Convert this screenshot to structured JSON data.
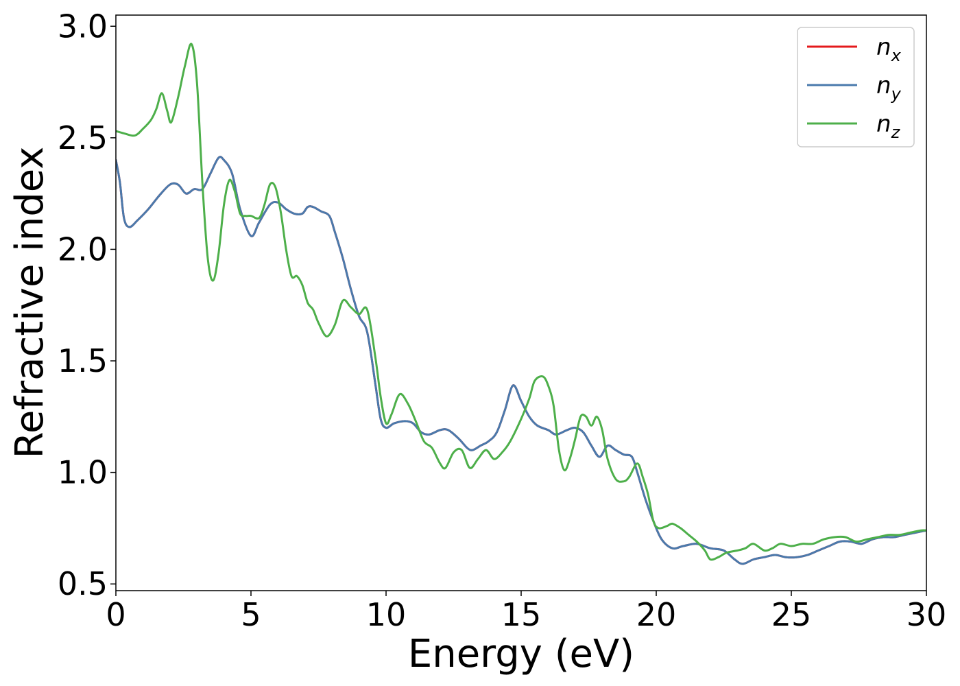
{
  "chart_data": {
    "type": "line",
    "xlabel": "Energy (eV)",
    "ylabel": "Refractive index",
    "xlim": [
      0,
      30
    ],
    "ylim": [
      0.47,
      3.05
    ],
    "xticks": [
      "0",
      "5",
      "10",
      "15",
      "20",
      "25",
      "30"
    ],
    "yticks": [
      "0.5",
      "1.0",
      "1.5",
      "2.0",
      "2.5",
      "3.0"
    ],
    "grid": false,
    "legend_position": "top-right",
    "series": [
      {
        "name": "n_x",
        "label_base": "n",
        "label_sub": "x",
        "color": "#e41a1c",
        "x": [
          0,
          0.15,
          0.3,
          0.5,
          0.8,
          1.2,
          1.6,
          2.0,
          2.3,
          2.6,
          2.9,
          3.2,
          3.5,
          3.8,
          4.0,
          4.3,
          4.6,
          5.0,
          5.3,
          5.7,
          6.0,
          6.3,
          6.6,
          6.9,
          7.1,
          7.3,
          7.6,
          7.9,
          8.1,
          8.4,
          8.7,
          9.0,
          9.3,
          9.6,
          9.8,
          10.0,
          10.3,
          10.7,
          11.0,
          11.3,
          11.6,
          12.0,
          12.3,
          12.7,
          13.0,
          13.2,
          13.5,
          13.8,
          14.1,
          14.4,
          14.7,
          15.0,
          15.3,
          15.6,
          16.0,
          16.3,
          16.7,
          17.0,
          17.3,
          17.6,
          17.9,
          18.2,
          18.5,
          18.8,
          19.1,
          19.3,
          19.6,
          19.9,
          20.2,
          20.6,
          21.0,
          21.5,
          22.0,
          22.5,
          22.9,
          23.2,
          23.6,
          24.0,
          24.4,
          24.8,
          25.2,
          25.6,
          26.0,
          26.4,
          26.8,
          27.2,
          27.6,
          28.0,
          28.4,
          28.8,
          29.2,
          29.6,
          30.0
        ],
        "y": [
          2.4,
          2.3,
          2.14,
          2.1,
          2.13,
          2.18,
          2.24,
          2.29,
          2.29,
          2.25,
          2.27,
          2.27,
          2.34,
          2.41,
          2.4,
          2.34,
          2.18,
          2.06,
          2.12,
          2.2,
          2.21,
          2.18,
          2.16,
          2.16,
          2.19,
          2.19,
          2.17,
          2.15,
          2.08,
          1.96,
          1.82,
          1.7,
          1.63,
          1.4,
          1.24,
          1.2,
          1.22,
          1.23,
          1.22,
          1.18,
          1.17,
          1.19,
          1.19,
          1.15,
          1.11,
          1.1,
          1.12,
          1.14,
          1.18,
          1.28,
          1.39,
          1.32,
          1.25,
          1.21,
          1.19,
          1.17,
          1.19,
          1.2,
          1.18,
          1.12,
          1.07,
          1.12,
          1.1,
          1.08,
          1.07,
          1.0,
          0.88,
          0.78,
          0.7,
          0.66,
          0.67,
          0.68,
          0.66,
          0.65,
          0.61,
          0.59,
          0.61,
          0.62,
          0.63,
          0.62,
          0.62,
          0.63,
          0.65,
          0.67,
          0.69,
          0.69,
          0.68,
          0.7,
          0.71,
          0.71,
          0.72,
          0.73,
          0.74
        ]
      },
      {
        "name": "n_y",
        "label_base": "n",
        "label_sub": "y",
        "color": "#4a7aac",
        "x": [
          0,
          0.15,
          0.3,
          0.5,
          0.8,
          1.2,
          1.6,
          2.0,
          2.3,
          2.6,
          2.9,
          3.2,
          3.5,
          3.8,
          4.0,
          4.3,
          4.6,
          5.0,
          5.3,
          5.7,
          6.0,
          6.3,
          6.6,
          6.9,
          7.1,
          7.3,
          7.6,
          7.9,
          8.1,
          8.4,
          8.7,
          9.0,
          9.3,
          9.6,
          9.8,
          10.0,
          10.3,
          10.7,
          11.0,
          11.3,
          11.6,
          12.0,
          12.3,
          12.7,
          13.0,
          13.2,
          13.5,
          13.8,
          14.1,
          14.4,
          14.7,
          15.0,
          15.3,
          15.6,
          16.0,
          16.3,
          16.7,
          17.0,
          17.3,
          17.6,
          17.9,
          18.2,
          18.5,
          18.8,
          19.1,
          19.3,
          19.6,
          19.9,
          20.2,
          20.6,
          21.0,
          21.5,
          22.0,
          22.5,
          22.9,
          23.2,
          23.6,
          24.0,
          24.4,
          24.8,
          25.2,
          25.6,
          26.0,
          26.4,
          26.8,
          27.2,
          27.6,
          28.0,
          28.4,
          28.8,
          29.2,
          29.6,
          30.0
        ],
        "y": [
          2.4,
          2.3,
          2.14,
          2.1,
          2.13,
          2.18,
          2.24,
          2.29,
          2.29,
          2.25,
          2.27,
          2.27,
          2.34,
          2.41,
          2.4,
          2.34,
          2.18,
          2.06,
          2.12,
          2.2,
          2.21,
          2.18,
          2.16,
          2.16,
          2.19,
          2.19,
          2.17,
          2.15,
          2.08,
          1.96,
          1.82,
          1.7,
          1.63,
          1.4,
          1.24,
          1.2,
          1.22,
          1.23,
          1.22,
          1.18,
          1.17,
          1.19,
          1.19,
          1.15,
          1.11,
          1.1,
          1.12,
          1.14,
          1.18,
          1.28,
          1.39,
          1.32,
          1.25,
          1.21,
          1.19,
          1.17,
          1.19,
          1.2,
          1.18,
          1.12,
          1.07,
          1.12,
          1.1,
          1.08,
          1.07,
          1.0,
          0.88,
          0.78,
          0.7,
          0.66,
          0.67,
          0.68,
          0.66,
          0.65,
          0.61,
          0.59,
          0.61,
          0.62,
          0.63,
          0.62,
          0.62,
          0.63,
          0.65,
          0.67,
          0.69,
          0.69,
          0.68,
          0.7,
          0.71,
          0.71,
          0.72,
          0.73,
          0.74
        ]
      },
      {
        "name": "n_z",
        "label_base": "n",
        "label_sub": "z",
        "color": "#4daf4a",
        "x": [
          0,
          0.3,
          0.7,
          1.0,
          1.3,
          1.5,
          1.7,
          1.9,
          2.05,
          2.3,
          2.55,
          2.8,
          3.0,
          3.2,
          3.4,
          3.6,
          3.8,
          4.0,
          4.2,
          4.4,
          4.6,
          4.8,
          5.0,
          5.3,
          5.5,
          5.7,
          5.9,
          6.1,
          6.3,
          6.5,
          6.7,
          6.9,
          7.1,
          7.3,
          7.5,
          7.8,
          8.1,
          8.4,
          8.7,
          9.0,
          9.3,
          9.6,
          9.8,
          10.0,
          10.2,
          10.5,
          10.8,
          11.1,
          11.4,
          11.7,
          12.0,
          12.2,
          12.5,
          12.8,
          13.1,
          13.4,
          13.7,
          14.0,
          14.3,
          14.6,
          15.0,
          15.3,
          15.5,
          15.8,
          16.0,
          16.2,
          16.4,
          16.6,
          16.8,
          17.0,
          17.2,
          17.4,
          17.6,
          17.8,
          18.0,
          18.2,
          18.5,
          18.8,
          19.0,
          19.3,
          19.5,
          19.7,
          19.9,
          20.1,
          20.4,
          20.6,
          20.9,
          21.2,
          21.5,
          21.8,
          22.0,
          22.3,
          22.6,
          23.0,
          23.3,
          23.6,
          24.0,
          24.3,
          24.6,
          25.0,
          25.4,
          25.8,
          26.2,
          26.6,
          27.0,
          27.4,
          27.8,
          28.2,
          28.6,
          29.0,
          29.4,
          29.8,
          30.0
        ],
        "y": [
          2.53,
          2.52,
          2.51,
          2.54,
          2.58,
          2.63,
          2.7,
          2.62,
          2.57,
          2.68,
          2.82,
          2.92,
          2.75,
          2.3,
          1.96,
          1.86,
          1.98,
          2.2,
          2.31,
          2.26,
          2.16,
          2.15,
          2.15,
          2.14,
          2.2,
          2.29,
          2.28,
          2.17,
          2.0,
          1.88,
          1.88,
          1.84,
          1.76,
          1.73,
          1.67,
          1.61,
          1.66,
          1.77,
          1.74,
          1.71,
          1.73,
          1.52,
          1.34,
          1.22,
          1.26,
          1.35,
          1.31,
          1.23,
          1.14,
          1.11,
          1.04,
          1.02,
          1.09,
          1.1,
          1.02,
          1.06,
          1.1,
          1.06,
          1.09,
          1.14,
          1.24,
          1.33,
          1.41,
          1.43,
          1.39,
          1.3,
          1.1,
          1.01,
          1.06,
          1.15,
          1.25,
          1.25,
          1.21,
          1.25,
          1.19,
          1.06,
          0.97,
          0.96,
          0.98,
          1.04,
          0.98,
          0.9,
          0.78,
          0.75,
          0.76,
          0.77,
          0.75,
          0.72,
          0.69,
          0.65,
          0.61,
          0.62,
          0.64,
          0.65,
          0.66,
          0.68,
          0.65,
          0.66,
          0.68,
          0.67,
          0.68,
          0.68,
          0.7,
          0.71,
          0.71,
          0.69,
          0.7,
          0.71,
          0.72,
          0.72,
          0.73,
          0.74,
          0.74
        ]
      }
    ]
  }
}
